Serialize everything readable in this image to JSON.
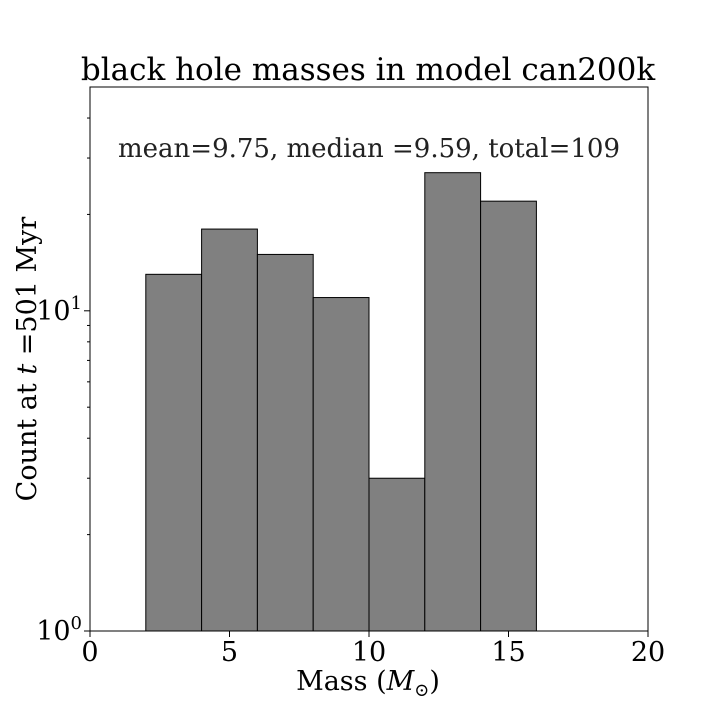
{
  "chart_data": {
    "type": "bar",
    "title": "black hole masses in model can200k",
    "xlabel": "Mass (M⊙)",
    "ylabel": "Count at t =501 Myr",
    "annotation": "mean=9.75, median =9.59, total=109",
    "x_scale": "linear",
    "y_scale": "log",
    "xlim": [
      0,
      20
    ],
    "ylim": [
      1,
      50
    ],
    "x_ticks": [
      0,
      5,
      10,
      15,
      20
    ],
    "y_ticks": [
      1,
      10
    ],
    "bin_edges": [
      2,
      4,
      6,
      8,
      10,
      12,
      14,
      16
    ],
    "values": [
      13,
      18,
      15,
      11,
      3,
      27,
      22
    ],
    "grid": false,
    "colors": {
      "bar_fill": "#808080",
      "bar_edge": "#000000"
    }
  }
}
